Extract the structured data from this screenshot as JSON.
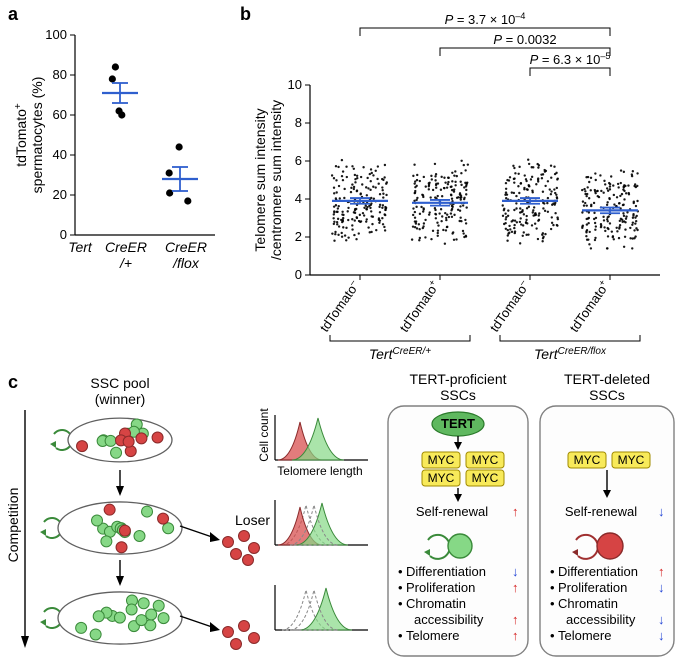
{
  "panelA": {
    "label": "a",
    "y_title": "tdTomato",
    "y_title_sup": "+",
    "y_title2": "spermatocytes (%)",
    "yticks": [
      0,
      20,
      40,
      60,
      80,
      100
    ],
    "categories": [
      {
        "line1": "Tert",
        "line2": "",
        "italic": true
      },
      {
        "line1": "CreER",
        "line2": "/+",
        "italic": true
      },
      {
        "line1": "CreER",
        "line2": "/flox",
        "italic": true
      }
    ],
    "groups": [
      {
        "x": 1,
        "mean": 71,
        "sem": 5,
        "points": [
          84,
          78,
          62,
          60
        ]
      },
      {
        "x": 2,
        "mean": 28,
        "sem": 6,
        "points": [
          44,
          31,
          21,
          17
        ]
      }
    ],
    "mean_color": "#2f5fce"
  },
  "panelB": {
    "label": "b",
    "y_title1": "Telomere sum intensity",
    "y_title2": "/centromere sum intensity",
    "yticks": [
      0,
      2,
      4,
      6,
      8,
      10
    ],
    "pvals": [
      {
        "from": 0,
        "to": 3,
        "text_parts": [
          "P",
          " = 3.7 × 10"
        ],
        "exp": "–4",
        "y": 0
      },
      {
        "from": 1,
        "to": 3,
        "text_parts": [
          "P",
          " = 0.0032"
        ],
        "exp": "",
        "y": 1
      },
      {
        "from": 2,
        "to": 3,
        "text_parts": [
          "P",
          " = 6.3 × 10"
        ],
        "exp": "–5",
        "y": 2
      }
    ],
    "categories": [
      {
        "label": "tdTomato",
        "sup": "–"
      },
      {
        "label": "tdTomato",
        "sup": "+"
      },
      {
        "label": "tdTomato",
        "sup": "–"
      },
      {
        "label": "tdTomato",
        "sup": "+"
      }
    ],
    "geno_groups": [
      {
        "label_parts": [
          "Tert",
          "CreER/+"
        ],
        "covers": [
          0,
          1
        ]
      },
      {
        "label_parts": [
          "Tert",
          "CreER/flox"
        ],
        "covers": [
          2,
          3
        ]
      }
    ],
    "means": [
      3.9,
      3.8,
      3.9,
      3.4
    ],
    "sems": [
      0.15,
      0.15,
      0.15,
      0.15
    ],
    "mean_color": "#2f5fce",
    "cloud_n": 180
  },
  "panelC": {
    "label": "c",
    "pool_title": "SSC pool",
    "pool_sub": "(winner)",
    "loser": "Loser",
    "competition": "Competition",
    "hist_y": "Cell count",
    "hist_x": "Telomere length",
    "proficient_title": "TERT-proficient",
    "proficient_sub": "SSCs",
    "deleted_title": "TERT-deleted",
    "deleted_sub": "SSCs",
    "tert": "TERT",
    "myc": "MYC",
    "self_renewal": "Self-renewal",
    "bullets": [
      "Differentiation",
      "Proliferation",
      "Chromatin",
      "accessibility",
      "Telomere"
    ],
    "colors": {
      "green": "#86d886",
      "green_stroke": "#3a8a3a",
      "red": "#d64444",
      "red_stroke": "#8a2a2a",
      "tert_fill": "#5fb85f",
      "myc_fill": "#f8ea5a",
      "myc_stroke": "#a08a00"
    }
  }
}
